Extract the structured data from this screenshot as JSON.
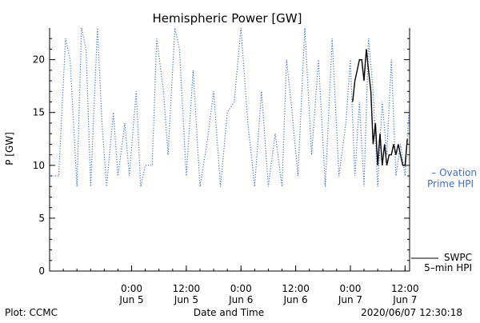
{
  "chart_data": {
    "type": "line",
    "title": "Hemispheric Power [GW]",
    "xlabel": "Date and Time",
    "ylabel": "P [GW]",
    "x_range": [
      "2020-06-04 06:00",
      "2020-06-07 13:00"
    ],
    "ylim": [
      0,
      23
    ],
    "y_ticks": [
      0,
      5,
      10,
      15,
      20
    ],
    "x_ticks": [
      {
        "time": "2020-06-05 00:00",
        "line1": "0:00",
        "line2": "Jun 5"
      },
      {
        "time": "2020-06-05 12:00",
        "line1": "12:00",
        "line2": "Jun 5"
      },
      {
        "time": "2020-06-06 00:00",
        "line1": "0:00",
        "line2": "Jun 6"
      },
      {
        "time": "2020-06-06 12:00",
        "line1": "12:00",
        "line2": "Jun 6"
      },
      {
        "time": "2020-06-07 00:00",
        "line1": "0:00",
        "line2": "Jun 7"
      },
      {
        "time": "2020-06-07 12:00",
        "line1": "12:00",
        "line2": "Jun 7"
      }
    ],
    "grid": false,
    "series": [
      {
        "name": "Ovation Prime HPI",
        "color": "#3a6fd8",
        "style": "dotted",
        "x": [
          "2020-06-04 06:00",
          "2020-06-04 08:00",
          "2020-06-04 09:30",
          "2020-06-04 10:30",
          "2020-06-04 12:00",
          "2020-06-04 13:00",
          "2020-06-04 14:00",
          "2020-06-04 15:00",
          "2020-06-04 16:30",
          "2020-06-04 17:30",
          "2020-06-04 18:30",
          "2020-06-04 20:00",
          "2020-06-04 21:00",
          "2020-06-04 22:30",
          "2020-06-04 23:30",
          "2020-06-05 01:00",
          "2020-06-05 02:00",
          "2020-06-05 03:00",
          "2020-06-05 04:30",
          "2020-06-05 05:30",
          "2020-06-05 07:00",
          "2020-06-05 08:00",
          "2020-06-05 09:30",
          "2020-06-05 10:30",
          "2020-06-05 12:00",
          "2020-06-05 13:30",
          "2020-06-05 15:00",
          "2020-06-05 16:30",
          "2020-06-05 18:00",
          "2020-06-05 19:30",
          "2020-06-05 21:00",
          "2020-06-05 22:30",
          "2020-06-06 00:00",
          "2020-06-06 01:30",
          "2020-06-06 03:00",
          "2020-06-06 04:30",
          "2020-06-06 06:00",
          "2020-06-06 07:30",
          "2020-06-06 09:00",
          "2020-06-06 10:00",
          "2020-06-06 11:00",
          "2020-06-06 12:30",
          "2020-06-06 14:00",
          "2020-06-06 15:30",
          "2020-06-06 17:00",
          "2020-06-06 18:30",
          "2020-06-06 20:00",
          "2020-06-06 21:30",
          "2020-06-06 23:00",
          "2020-06-07 00:00",
          "2020-06-07 01:00",
          "2020-06-07 02:00",
          "2020-06-07 03:00",
          "2020-06-07 04:00",
          "2020-06-07 05:00",
          "2020-06-07 06:00",
          "2020-06-07 07:00",
          "2020-06-07 08:00",
          "2020-06-07 09:00",
          "2020-06-07 10:00",
          "2020-06-07 11:00",
          "2020-06-07 12:00",
          "2020-06-07 13:00"
        ],
        "y": [
          9,
          9,
          22,
          20,
          8,
          23,
          21,
          8,
          23,
          14,
          8,
          15,
          9,
          14,
          9,
          17,
          8,
          10,
          10,
          22,
          17,
          11,
          23,
          21,
          9,
          19,
          8,
          12,
          17,
          8,
          15,
          16,
          23,
          14,
          8,
          17,
          8,
          13,
          8,
          20,
          16,
          9,
          23,
          11,
          20,
          8,
          22,
          9,
          14,
          20,
          9,
          16,
          8,
          22,
          17,
          8,
          16,
          11,
          20,
          9,
          12,
          9,
          16
        ]
      },
      {
        "name": "SWPC 5-min HPI",
        "color": "#000000",
        "style": "solid",
        "x": [
          "2020-06-07 00:30",
          "2020-06-07 01:00",
          "2020-06-07 01:30",
          "2020-06-07 02:00",
          "2020-06-07 02:30",
          "2020-06-07 03:00",
          "2020-06-07 03:30",
          "2020-06-07 04:00",
          "2020-06-07 04:30",
          "2020-06-07 05:00",
          "2020-06-07 05:30",
          "2020-06-07 06:00",
          "2020-06-07 06:30",
          "2020-06-07 07:00",
          "2020-06-07 07:30",
          "2020-06-07 08:00",
          "2020-06-07 08:30",
          "2020-06-07 09:00",
          "2020-06-07 09:30",
          "2020-06-07 10:00",
          "2020-06-07 10:30",
          "2020-06-07 11:00",
          "2020-06-07 11:30",
          "2020-06-07 12:00",
          "2020-06-07 12:30"
        ],
        "y": [
          16,
          18,
          19,
          20,
          20,
          18,
          21,
          19,
          17,
          12,
          14,
          10,
          13,
          10,
          12,
          10,
          11,
          11,
          12,
          11,
          12,
          11,
          10,
          10,
          12.5
        ]
      }
    ],
    "legend": [
      {
        "marker": "– Ovation",
        "line2": "Prime HPI",
        "color": "#3a6fd8"
      },
      {
        "line1": "SWPC",
        "line2": "5–min HPI",
        "color": "#000000"
      }
    ]
  },
  "footer": {
    "left": "Plot: CCMC",
    "center": "Date and Time",
    "right": "2020/06/07 12:30:18"
  }
}
